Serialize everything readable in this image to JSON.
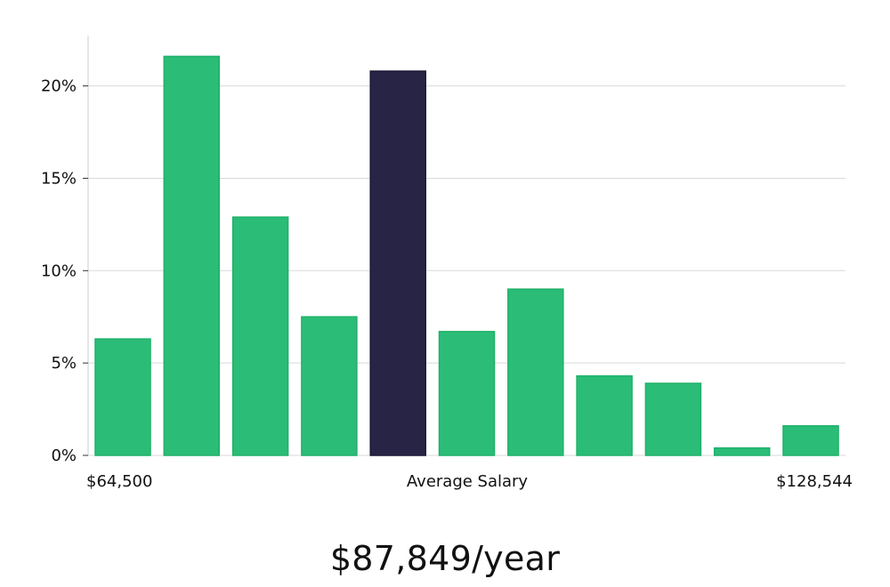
{
  "chart_data": {
    "type": "bar",
    "values": [
      6.3,
      21.6,
      12.9,
      7.5,
      20.8,
      6.7,
      9.0,
      4.3,
      3.9,
      0.4,
      1.6
    ],
    "highlight_index": 4,
    "ylim": [
      0,
      22.7
    ],
    "yticks": [
      0,
      5,
      10,
      15,
      20
    ],
    "ytick_labels": [
      "0%",
      "5%",
      "10%",
      "15%",
      "20%"
    ],
    "x_labels": {
      "left": "$64,500",
      "center": "Average Salary",
      "right": "$128,544"
    },
    "grid": true,
    "colors": {
      "bar": "#2bbd77",
      "bar_edge": "#1fb06a",
      "highlight": "#282446",
      "grid": "#d9d9d9",
      "axis": "#cccccc"
    }
  },
  "salary": {
    "headline": "$87,849/year"
  }
}
